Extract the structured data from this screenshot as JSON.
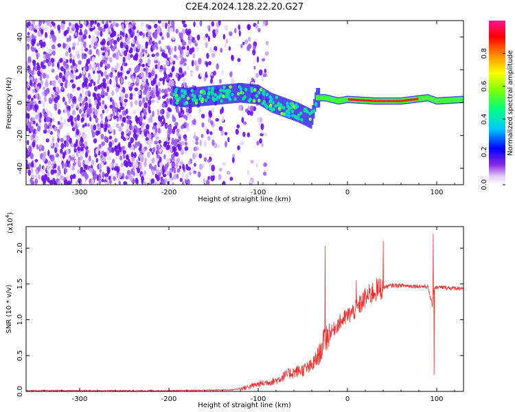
{
  "title": "C2E4.2024.128.22.20.G27",
  "chart_data": [
    {
      "type": "heatmap",
      "xlabel": "Height of straight line (km)",
      "ylabel": "Frequency (Hz)",
      "xlim": [
        -360,
        130
      ],
      "ylim": [
        -50,
        50
      ],
      "xticks": [
        -300,
        -200,
        -100,
        0,
        100
      ],
      "yticks": [
        -40,
        -20,
        0,
        20,
        40
      ],
      "colorbar": {
        "label": "Normalized spectral amplitude",
        "range": [
          0,
          1
        ],
        "ticks": [
          0.0,
          0.2,
          0.4,
          0.6,
          0.8
        ],
        "colors": [
          "#ffffff",
          "#e8ccf8",
          "#8a2be2",
          "#0000ff",
          "#00c8ff",
          "#00ff80",
          "#80ff00",
          "#ffff00",
          "#ff8000",
          "#ff0000",
          "#ff1493"
        ]
      },
      "noise_region": {
        "x": [
          -360,
          -110
        ],
        "amplitude": 0.2,
        "note_color": "#7b2be0"
      },
      "ridge": [
        {
          "x": -195,
          "y": 4
        },
        {
          "x": -180,
          "y": 3
        },
        {
          "x": -160,
          "y": 4
        },
        {
          "x": -140,
          "y": 5
        },
        {
          "x": -120,
          "y": 6
        },
        {
          "x": -100,
          "y": 5
        },
        {
          "x": -85,
          "y": 0
        },
        {
          "x": -70,
          "y": -3
        },
        {
          "x": -55,
          "y": -6
        },
        {
          "x": -40,
          "y": -10
        },
        {
          "x": -38,
          "y": -5
        },
        {
          "x": -35,
          "y": 3
        },
        {
          "x": -25,
          "y": 3
        },
        {
          "x": -10,
          "y": 1
        },
        {
          "x": 0,
          "y": 2
        },
        {
          "x": 30,
          "y": 1
        },
        {
          "x": 60,
          "y": 1
        },
        {
          "x": 90,
          "y": 3
        },
        {
          "x": 100,
          "y": 1
        },
        {
          "x": 130,
          "y": 2
        }
      ]
    },
    {
      "type": "line",
      "xlabel": "Height of straight line (km)",
      "ylabel": "SNR (10 * v/v)",
      "exponent_label": "(x10",
      "exponent_power": "4",
      "exponent_close": ")",
      "xlim": [
        -360,
        130
      ],
      "ylim": [
        0,
        2.3
      ],
      "xticks": [
        -300,
        -200,
        -100,
        0,
        100
      ],
      "yticks": [
        0.0,
        0.5,
        1.0,
        1.5,
        2.0
      ],
      "ytick_labels": [
        "0.0",
        "0.5",
        "1.0",
        "1.5",
        "2.0"
      ],
      "color": "#e8302e",
      "series": [
        {
          "x": [
            -360,
            -300,
            -200,
            -130,
            -115,
            -100,
            -80,
            -65,
            -50,
            -40,
            -30,
            -25,
            -20,
            -10,
            0,
            10,
            20,
            30,
            40,
            50,
            60,
            70,
            80,
            90,
            95,
            97,
            100,
            110,
            120,
            130
          ],
          "values": [
            0.01,
            0.01,
            0.01,
            0.02,
            0.05,
            0.1,
            0.15,
            0.25,
            0.3,
            0.35,
            0.55,
            0.75,
            0.8,
            0.95,
            1.05,
            1.15,
            1.3,
            1.4,
            1.45,
            1.48,
            1.48,
            1.47,
            1.47,
            1.46,
            1.2,
            1.45,
            1.45,
            1.45,
            1.44,
            1.44
          ]
        }
      ],
      "spikes": [
        {
          "x": -25,
          "y": 2.03
        },
        {
          "x": 40,
          "y": 2.1
        },
        {
          "x": 96,
          "y": 2.2
        },
        {
          "x": 97,
          "y": 0.23
        },
        {
          "x": 10,
          "y": 1.55
        }
      ]
    }
  ]
}
